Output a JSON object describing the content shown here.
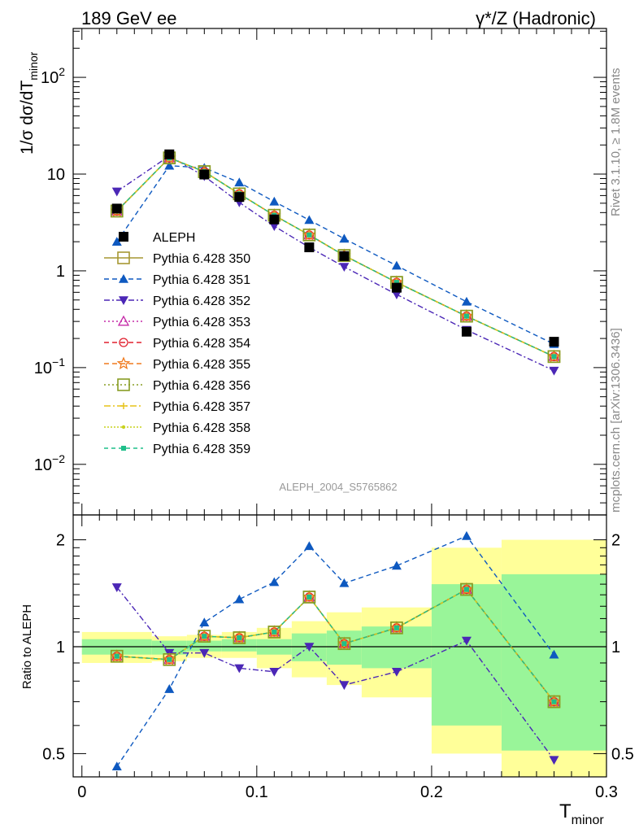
{
  "header": {
    "left": "189 GeV ee",
    "right": "γ*/Z (Hadronic)"
  },
  "side_text": {
    "rivet": "Rivet 3.1.10, ≥ 1.8M events",
    "mcplots": "mcplots.cern.ch [arXiv:1306.3436]"
  },
  "analysis_label": "ALEPH_2004_S5765862",
  "chart_data": [
    {
      "type": "scatter",
      "panel": "main",
      "ylabel": "1/σ dσ/dT_minor",
      "yscale": "log",
      "ylim": [
        0.003,
        320
      ],
      "xlim": [
        -0.005,
        0.3
      ],
      "yticks": [
        "10^-2",
        "10^-1",
        "1",
        "10",
        "10^2"
      ],
      "legend_position": "middle-left",
      "x": [
        0.02,
        0.05,
        0.07,
        0.09,
        0.11,
        0.13,
        0.15,
        0.18,
        0.22,
        0.27
      ],
      "series": [
        {
          "name": "ALEPH",
          "color": "#000000",
          "marker": "square-filled",
          "values": [
            4.4,
            16.0,
            9.9,
            5.8,
            3.4,
            1.75,
            1.42,
            0.67,
            0.235,
            0.185
          ]
        },
        {
          "name": "Pythia 6.428 350",
          "color": "#a69732",
          "marker": "square-open",
          "values": [
            4.15,
            14.7,
            10.6,
            6.25,
            3.75,
            2.35,
            1.44,
            0.76,
            0.34,
            0.13
          ]
        },
        {
          "name": "Pythia 6.428 351",
          "color": "#0e59c0",
          "marker": "triangle-up",
          "values": [
            2.0,
            12.2,
            11.6,
            8.2,
            5.2,
            3.35,
            2.15,
            1.13,
            0.48,
            0.175
          ]
        },
        {
          "name": "Pythia 6.428 352",
          "color": "#4b27b6",
          "marker": "triangle-down",
          "values": [
            6.6,
            15.4,
            9.5,
            5.1,
            2.9,
            1.75,
            1.1,
            0.57,
            0.245,
            0.093
          ]
        },
        {
          "name": "Pythia 6.428 353",
          "color": "#c52aa8",
          "marker": "triangle-open",
          "values": [
            4.15,
            14.7,
            10.6,
            6.25,
            3.75,
            2.35,
            1.44,
            0.76,
            0.34,
            0.13
          ]
        },
        {
          "name": "Pythia 6.428 354",
          "color": "#e0202f",
          "marker": "circle-open",
          "values": [
            4.15,
            14.7,
            10.6,
            6.25,
            3.75,
            2.35,
            1.44,
            0.76,
            0.34,
            0.13
          ]
        },
        {
          "name": "Pythia 6.428 355",
          "color": "#f07a1e",
          "marker": "star-open",
          "values": [
            4.15,
            14.7,
            10.6,
            6.25,
            3.75,
            2.35,
            1.44,
            0.76,
            0.34,
            0.13
          ]
        },
        {
          "name": "Pythia 6.428 356",
          "color": "#889d24",
          "marker": "square-open",
          "values": [
            4.15,
            14.7,
            10.6,
            6.25,
            3.75,
            2.35,
            1.44,
            0.76,
            0.34,
            0.13
          ]
        },
        {
          "name": "Pythia 6.428 357",
          "color": "#e7c31a",
          "marker": "cross",
          "values": [
            4.15,
            14.7,
            10.6,
            6.25,
            3.75,
            2.35,
            1.44,
            0.76,
            0.34,
            0.13
          ]
        },
        {
          "name": "Pythia 6.428 358",
          "color": "#c8d21f",
          "marker": "dot",
          "values": [
            4.15,
            14.7,
            10.6,
            6.25,
            3.75,
            2.35,
            1.44,
            0.76,
            0.34,
            0.13
          ]
        },
        {
          "name": "Pythia 6.428 359",
          "color": "#1fbf8a",
          "marker": "square-small",
          "values": [
            4.15,
            14.7,
            10.6,
            6.25,
            3.75,
            2.35,
            1.44,
            0.76,
            0.34,
            0.13
          ]
        }
      ]
    },
    {
      "type": "scatter",
      "panel": "ratio",
      "xlabel": "T_minor",
      "ylabel": "Ratio to ALEPH",
      "yscale": "log",
      "ylim": [
        0.43,
        2.35
      ],
      "xlim": [
        -0.005,
        0.3
      ],
      "xticks": [
        "0",
        "0.1",
        "0.2",
        "0.3"
      ],
      "yticks": [
        "0.5",
        "1",
        "2"
      ],
      "uncertainty_bands": {
        "edges": [
          0.0,
          0.04,
          0.06,
          0.08,
          0.1,
          0.12,
          0.14,
          0.16,
          0.2,
          0.24,
          0.3
        ],
        "inner_color": "#99f599",
        "outer_color": "#ffff99",
        "inner_low": [
          0.95,
          0.95,
          0.97,
          0.97,
          0.95,
          0.91,
          0.89,
          0.87,
          0.6,
          0.51
        ],
        "inner_high": [
          1.05,
          1.04,
          1.04,
          1.05,
          1.05,
          1.09,
          1.11,
          1.14,
          1.5,
          1.6
        ],
        "outer_low": [
          0.9,
          0.91,
          0.93,
          0.93,
          0.87,
          0.82,
          0.78,
          0.72,
          0.5,
          0.41
        ],
        "outer_high": [
          1.1,
          1.07,
          1.08,
          1.1,
          1.13,
          1.18,
          1.25,
          1.29,
          1.9,
          2.0
        ]
      },
      "x": [
        0.02,
        0.05,
        0.07,
        0.09,
        0.11,
        0.13,
        0.15,
        0.18,
        0.22,
        0.27
      ],
      "series": [
        {
          "name": "Pythia 6.428 350",
          "values": [
            0.94,
            0.92,
            1.07,
            1.06,
            1.1,
            1.38,
            1.02,
            1.13,
            1.45,
            0.7
          ]
        },
        {
          "name": "Pythia 6.428 351",
          "values": [
            0.46,
            0.76,
            1.17,
            1.36,
            1.52,
            1.92,
            1.51,
            1.69,
            2.05,
            0.95
          ]
        },
        {
          "name": "Pythia 6.428 352",
          "values": [
            1.47,
            0.96,
            0.96,
            0.87,
            0.85,
            1.0,
            0.78,
            0.85,
            1.04,
            0.48
          ]
        },
        {
          "name": "Pythia 6.428 353",
          "values": [
            0.94,
            0.92,
            1.07,
            1.06,
            1.1,
            1.38,
            1.02,
            1.13,
            1.45,
            0.7
          ]
        },
        {
          "name": "Pythia 6.428 354",
          "values": [
            0.94,
            0.92,
            1.07,
            1.06,
            1.1,
            1.38,
            1.02,
            1.13,
            1.45,
            0.7
          ]
        },
        {
          "name": "Pythia 6.428 355",
          "values": [
            0.94,
            0.92,
            1.07,
            1.06,
            1.1,
            1.38,
            1.02,
            1.13,
            1.45,
            0.7
          ]
        },
        {
          "name": "Pythia 6.428 356",
          "values": [
            0.94,
            0.92,
            1.07,
            1.06,
            1.1,
            1.38,
            1.02,
            1.13,
            1.45,
            0.7
          ]
        },
        {
          "name": "Pythia 6.428 357",
          "values": [
            0.94,
            0.92,
            1.07,
            1.06,
            1.1,
            1.38,
            1.02,
            1.13,
            1.45,
            0.7
          ]
        },
        {
          "name": "Pythia 6.428 358",
          "values": [
            0.94,
            0.92,
            1.07,
            1.06,
            1.1,
            1.38,
            1.02,
            1.13,
            1.45,
            0.7
          ]
        },
        {
          "name": "Pythia 6.428 359",
          "values": [
            0.94,
            0.92,
            1.07,
            1.06,
            1.1,
            1.38,
            1.02,
            1.13,
            1.45,
            0.7
          ]
        }
      ]
    }
  ]
}
